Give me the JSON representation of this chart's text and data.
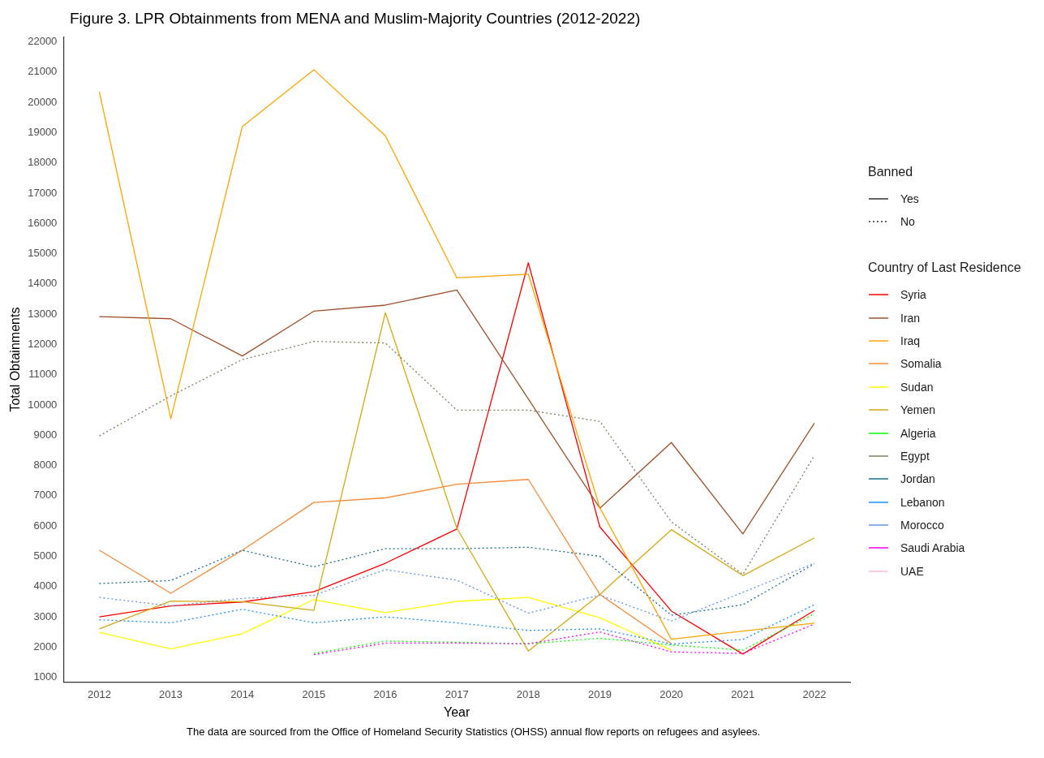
{
  "chart_data": {
    "type": "line",
    "title": "Figure 3. LPR Obtainments from MENA and Muslim-Majority Countries (2012-2022)",
    "xlabel": "Year",
    "ylabel": "Total Obtainments",
    "legend_title": "Country of Last Residence",
    "legend": "right",
    "grid": false,
    "marker": "none",
    "categories": [
      "2012",
      "2013",
      "2014",
      "2015",
      "2016",
      "2017",
      "2018",
      "2019",
      "2020",
      "2021",
      "2022"
    ],
    "ylim": [
      850,
      22150
    ],
    "yticks": [
      1000,
      2000,
      3000,
      4000,
      5000,
      6000,
      7000,
      8000,
      9000,
      10000,
      11000,
      12000,
      13000,
      14000,
      15000,
      16000,
      17000,
      18000,
      19000,
      20000,
      21000,
      22000
    ],
    "annotations": [
      "Banned",
      "Yes",
      "No",
      "The data are sourced from the Office of Homeland Security Statistics (OHSS) annual flow reports on refugees and asylees."
    ],
    "series": [
      {
        "name": "Syria",
        "color": "#ff0000",
        "line_style": "solid",
        "values": [
          3000,
          3360,
          3490,
          3830,
          4770,
          5900,
          14700,
          5970,
          3190,
          1770,
          3210
        ]
      },
      {
        "name": "Iran",
        "color": "#a0522d",
        "line_style": "solid",
        "values": [
          12920,
          12850,
          11620,
          13100,
          13300,
          13800,
          10200,
          6590,
          8760,
          5740,
          9400
        ]
      },
      {
        "name": "Iraq",
        "color": "#ffa500",
        "line_style": "solid",
        "values": [
          20350,
          9550,
          19200,
          21080,
          18900,
          14200,
          14320,
          6600,
          2260,
          2530,
          2790
        ]
      },
      {
        "name": "Somalia",
        "color": "#f58b3a",
        "line_style": "solid",
        "values": [
          5200,
          3780,
          5200,
          6780,
          6930,
          7380,
          7540,
          3740,
          2110,
          null,
          null
        ]
      },
      {
        "name": "Sudan",
        "color": "#ffff00",
        "line_style": "solid",
        "values": [
          2490,
          1940,
          2440,
          3570,
          3140,
          3510,
          3640,
          2970,
          1900,
          null,
          null
        ]
      },
      {
        "name": "Yemen",
        "color": "#d4a914",
        "line_style": "solid",
        "values": [
          2600,
          3520,
          3500,
          3210,
          13050,
          5930,
          1870,
          3740,
          5880,
          4360,
          5610
        ]
      },
      {
        "name": "Algeria",
        "color": "#00ff00",
        "line_style": "dotted",
        "values": [
          null,
          null,
          null,
          1790,
          2200,
          2160,
          2110,
          2290,
          2070,
          1900,
          3100
        ]
      },
      {
        "name": "Egypt",
        "color": "#808060",
        "line_style": "dotted",
        "values": [
          8980,
          10300,
          11500,
          12100,
          12050,
          9830,
          9830,
          9460,
          6140,
          4400,
          8330
        ]
      },
      {
        "name": "Jordan",
        "color": "#1f6e8c",
        "line_style": "dotted",
        "values": [
          4100,
          4200,
          5200,
          4650,
          5250,
          5250,
          5300,
          5000,
          3050,
          3400,
          4750
        ]
      },
      {
        "name": "Lebanon",
        "color": "#1e90ff",
        "line_style": "dotted",
        "values": [
          2900,
          2800,
          3250,
          2800,
          3000,
          2800,
          2550,
          2600,
          2100,
          2250,
          3400
        ]
      },
      {
        "name": "Morocco",
        "color": "#6495ed",
        "line_style": "dotted",
        "values": [
          3640,
          3360,
          3610,
          3710,
          4560,
          4210,
          3120,
          3720,
          2860,
          3810,
          4770
        ]
      },
      {
        "name": "Saudi Arabia",
        "color": "#ff00ff",
        "line_style": "dotted",
        "values": [
          null,
          null,
          null,
          1750,
          2130,
          2130,
          2110,
          2500,
          1840,
          1790,
          2760
        ]
      },
      {
        "name": "UAE",
        "color": "#ffc0cb",
        "line_style": "dotted",
        "values": [
          null,
          null,
          null,
          null,
          null,
          null,
          null,
          null,
          null,
          null,
          null
        ]
      }
    ]
  }
}
